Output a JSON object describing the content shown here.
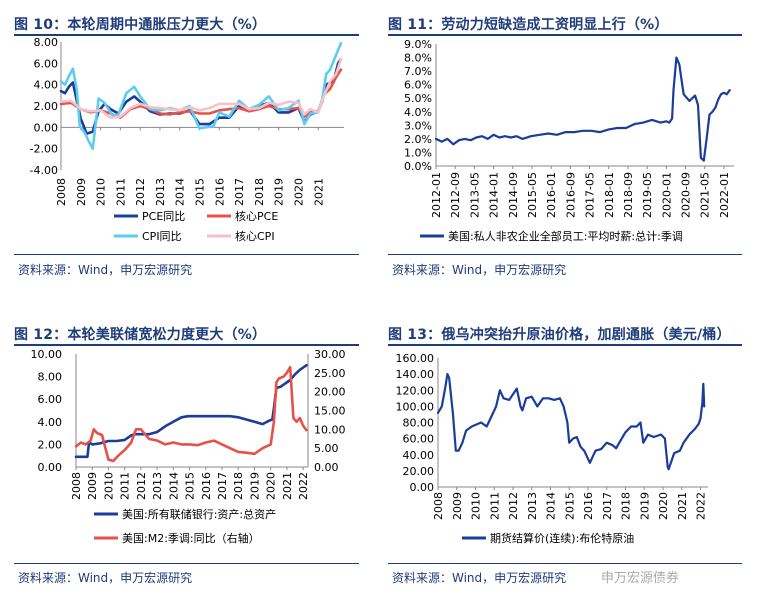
{
  "panels": [
    {
      "title": "图 10：本轮周期中通胀压力更大（%）",
      "source": "资料来源：Wind，申万宏源研究"
    },
    {
      "title": "图 11：劳动力短缺造成工资明显上行（%）",
      "source": "资料来源：Wind，申万宏源研究"
    },
    {
      "title": "图 12：本轮美联储宽松力度更大（%）",
      "source": "资料来源：Wind，申万宏源研究"
    },
    {
      "title": "图 13：俄乌冲突抬升原油价格，加剧通胀（美元/桶）",
      "source": "资料来源：Wind，申万宏源研究"
    }
  ],
  "watermark": "申万宏源债券",
  "chart_data": [
    {
      "type": "line",
      "title": "图 10：本轮周期中通胀压力更大（%）",
      "ylim": [
        -4,
        8
      ],
      "yticks": [
        "-4.00",
        "-2.00",
        "0.00",
        "2.00",
        "4.00",
        "6.00",
        "8.00"
      ],
      "xticks": [
        "2008",
        "2009",
        "2010",
        "2011",
        "2012",
        "2013",
        "2014",
        "2015",
        "2016",
        "2017",
        "2018",
        "2019",
        "2020",
        "2021"
      ],
      "legend_placement": "bottom",
      "series": [
        {
          "name": "PCE同比",
          "color": "#1a3d99",
          "x": [
            2008.0,
            2008.2,
            2008.4,
            2008.6,
            2008.8,
            2009.0,
            2009.3,
            2009.6,
            2009.9,
            2010.2,
            2010.5,
            2010.9,
            2011.3,
            2011.7,
            2012.0,
            2012.5,
            2013.0,
            2013.5,
            2014.0,
            2014.5,
            2015.0,
            2015.5,
            2016.0,
            2016.5,
            2017.0,
            2017.5,
            2018.0,
            2018.5,
            2019.0,
            2019.5,
            2020.0,
            2020.3,
            2020.6,
            2021.0,
            2021.2,
            2021.4,
            2021.6,
            2021.8,
            2022.0,
            2022.15
          ],
          "y": [
            3.4,
            3.2,
            3.8,
            4.2,
            2.5,
            0.8,
            -0.6,
            -0.4,
            1.5,
            2.2,
            1.7,
            1.3,
            2.4,
            2.9,
            2.4,
            1.5,
            1.2,
            1.3,
            1.3,
            1.6,
            0.3,
            0.3,
            0.9,
            0.9,
            2.0,
            1.6,
            2.0,
            2.3,
            1.4,
            1.4,
            1.8,
            0.5,
            1.2,
            1.5,
            2.4,
            4.0,
            4.2,
            4.5,
            6.0,
            6.4
          ]
        },
        {
          "name": "核心PCE",
          "color": "#e8514a",
          "x": [
            2008.0,
            2008.5,
            2009.0,
            2009.5,
            2010.0,
            2010.5,
            2011.0,
            2011.5,
            2012.0,
            2012.5,
            2013.0,
            2013.5,
            2014.0,
            2014.5,
            2015.0,
            2015.5,
            2016.0,
            2016.5,
            2017.0,
            2017.5,
            2018.0,
            2018.5,
            2019.0,
            2019.5,
            2020.0,
            2020.3,
            2020.6,
            2021.0,
            2021.3,
            2021.6,
            2021.9,
            2022.15
          ],
          "y": [
            2.2,
            2.3,
            1.7,
            1.4,
            1.6,
            1.3,
            0.9,
            1.7,
            2.0,
            1.7,
            1.3,
            1.2,
            1.4,
            1.5,
            1.3,
            1.3,
            1.6,
            1.7,
            1.8,
            1.5,
            1.7,
            2.0,
            1.7,
            1.7,
            1.8,
            1.0,
            1.4,
            1.5,
            3.1,
            3.6,
            4.7,
            5.4
          ]
        },
        {
          "name": "CPI同比",
          "color": "#5ccdf2",
          "x": [
            2008.0,
            2008.2,
            2008.4,
            2008.6,
            2008.8,
            2008.95,
            2009.2,
            2009.4,
            2009.6,
            2009.9,
            2010.2,
            2010.6,
            2010.9,
            2011.3,
            2011.7,
            2012.0,
            2012.5,
            2013.0,
            2013.5,
            2014.0,
            2014.5,
            2015.0,
            2015.3,
            2015.7,
            2016.0,
            2016.5,
            2017.0,
            2017.5,
            2018.0,
            2018.5,
            2019.0,
            2019.5,
            2020.0,
            2020.3,
            2020.6,
            2021.0,
            2021.2,
            2021.4,
            2021.6,
            2021.9,
            2022.15
          ],
          "y": [
            4.3,
            4.0,
            4.8,
            5.5,
            3.5,
            0.1,
            -0.5,
            -1.3,
            -2.0,
            2.7,
            2.3,
            1.1,
            1.2,
            3.2,
            3.8,
            2.9,
            1.7,
            1.6,
            1.8,
            1.6,
            2.0,
            -0.1,
            0.0,
            0.1,
            1.4,
            1.0,
            2.5,
            1.7,
            2.1,
            2.9,
            1.6,
            1.8,
            2.5,
            0.3,
            1.3,
            1.4,
            2.6,
            5.0,
            5.4,
            6.8,
            7.9
          ]
        },
        {
          "name": "核心CPI",
          "color": "#f6c2c9",
          "x": [
            2008.0,
            2008.5,
            2009.0,
            2009.5,
            2010.0,
            2010.5,
            2011.0,
            2011.5,
            2012.0,
            2012.5,
            2013.0,
            2013.5,
            2014.0,
            2014.5,
            2015.0,
            2015.5,
            2016.0,
            2016.5,
            2017.0,
            2017.5,
            2018.0,
            2018.5,
            2019.0,
            2019.5,
            2020.0,
            2020.3,
            2020.6,
            2021.0,
            2021.3,
            2021.6,
            2021.9,
            2022.15
          ],
          "y": [
            2.4,
            2.5,
            1.7,
            1.5,
            1.6,
            0.9,
            1.0,
            1.8,
            2.2,
            1.9,
            1.8,
            1.7,
            1.6,
            1.9,
            1.6,
            1.8,
            2.2,
            2.2,
            2.2,
            1.7,
            1.8,
            2.3,
            2.1,
            2.4,
            2.3,
            1.2,
            1.7,
            1.4,
            3.0,
            4.3,
            5.0,
            6.4
          ]
        }
      ]
    },
    {
      "type": "line",
      "title": "图 11：劳动力短缺造成工资明显上行（%）",
      "ylim": [
        0,
        9
      ],
      "yticks": [
        "0.0%",
        "1.0%",
        "2.0%",
        "3.0%",
        "4.0%",
        "5.0%",
        "6.0%",
        "7.0%",
        "8.0%",
        "9.0%"
      ],
      "xticks": [
        "2012-01",
        "2012-09",
        "2013-05",
        "2014-01",
        "2014-09",
        "2015-05",
        "2016-01",
        "2016-09",
        "2017-05",
        "2018-01",
        "2018-09",
        "2019-05",
        "2020-01",
        "2020-09",
        "2021-05",
        "2022-01"
      ],
      "legend_placement": "bottom",
      "series": [
        {
          "name": "美国:私人非农企业全部员工:平均时薪:总计:季调",
          "color": "#1a3d99",
          "x": [
            2012.0,
            2012.2,
            2012.4,
            2012.6,
            2012.8,
            2013.0,
            2013.2,
            2013.4,
            2013.6,
            2013.8,
            2014.0,
            2014.2,
            2014.4,
            2014.6,
            2014.8,
            2015.0,
            2015.3,
            2015.6,
            2015.9,
            2016.2,
            2016.5,
            2016.8,
            2017.1,
            2017.4,
            2017.7,
            2018.0,
            2018.3,
            2018.6,
            2018.9,
            2019.2,
            2019.5,
            2019.8,
            2020.0,
            2020.1,
            2020.2,
            2020.25,
            2020.35,
            2020.45,
            2020.6,
            2020.8,
            2021.0,
            2021.1,
            2021.2,
            2021.3,
            2021.4,
            2021.5,
            2021.6,
            2021.7,
            2021.8,
            2021.9,
            2022.0,
            2022.1,
            2022.2
          ],
          "y": [
            2.0,
            1.8,
            2.0,
            1.6,
            1.9,
            2.0,
            1.9,
            2.1,
            2.2,
            2.0,
            2.3,
            2.1,
            2.2,
            2.1,
            2.2,
            2.0,
            2.2,
            2.3,
            2.4,
            2.3,
            2.5,
            2.5,
            2.6,
            2.6,
            2.5,
            2.7,
            2.8,
            2.8,
            3.1,
            3.2,
            3.4,
            3.2,
            3.3,
            3.2,
            3.5,
            5.6,
            8.0,
            7.5,
            5.3,
            4.8,
            5.2,
            4.5,
            0.6,
            0.4,
            2.0,
            3.8,
            4.0,
            4.3,
            4.9,
            5.3,
            5.4,
            5.3,
            5.6
          ]
        }
      ]
    },
    {
      "type": "line",
      "title": "图 12：本轮美联储宽松力度更大（%）",
      "ylim": [
        0,
        10
      ],
      "y2lim": [
        0,
        30
      ],
      "yticks": [
        "0.00",
        "2.00",
        "4.00",
        "6.00",
        "8.00",
        "10.00"
      ],
      "y2ticks": [
        "0.00",
        "5.00",
        "10.00",
        "15.00",
        "20.00",
        "25.00",
        "30.00"
      ],
      "xticks": [
        "2008",
        "2009",
        "2010",
        "2011",
        "2012",
        "2013",
        "2014",
        "2015",
        "2016",
        "2017",
        "2018",
        "2019",
        "2020",
        "2021",
        "2022"
      ],
      "legend_placement": "bottom",
      "series": [
        {
          "name": "美国:所有联储银行:资产:总资产",
          "color": "#1a3d99",
          "axis": "left",
          "x": [
            2008.0,
            2008.7,
            2008.75,
            2008.8,
            2009.0,
            2009.5,
            2010.0,
            2010.5,
            2011.0,
            2011.4,
            2011.6,
            2012.0,
            2012.5,
            2013.0,
            2013.5,
            2014.0,
            2014.5,
            2014.9,
            2015.5,
            2016.0,
            2016.5,
            2017.0,
            2017.5,
            2018.0,
            2018.5,
            2019.0,
            2019.5,
            2019.9,
            2020.1,
            2020.2,
            2020.35,
            2020.6,
            2020.9,
            2021.2,
            2021.5,
            2021.8,
            2022.2
          ],
          "y": [
            0.9,
            0.9,
            1.5,
            2.2,
            2.0,
            2.1,
            2.3,
            2.3,
            2.4,
            2.8,
            2.9,
            2.9,
            2.9,
            3.1,
            3.6,
            4.0,
            4.4,
            4.5,
            4.5,
            4.5,
            4.5,
            4.5,
            4.5,
            4.4,
            4.2,
            4.0,
            3.8,
            4.1,
            4.2,
            5.2,
            7.0,
            7.1,
            7.4,
            7.7,
            8.2,
            8.6,
            9.0
          ]
        },
        {
          "name": "美国:M2:季调:同比（右轴）",
          "color": "#e8514a",
          "axis": "right",
          "x": [
            2008.0,
            2008.3,
            2008.6,
            2008.9,
            2009.1,
            2009.3,
            2009.6,
            2010.0,
            2010.3,
            2010.6,
            2011.0,
            2011.4,
            2011.7,
            2012.0,
            2012.5,
            2013.0,
            2013.5,
            2014.0,
            2014.5,
            2015.0,
            2015.5,
            2016.0,
            2016.5,
            2017.0,
            2017.5,
            2018.0,
            2018.5,
            2019.0,
            2019.5,
            2020.0,
            2020.2,
            2020.35,
            2020.5,
            2020.8,
            2021.0,
            2021.2,
            2021.4,
            2021.6,
            2021.8,
            2022.0,
            2022.2
          ],
          "y": [
            5.5,
            6.5,
            6.0,
            7.0,
            10.0,
            9.0,
            8.5,
            2.0,
            1.6,
            3.0,
            4.5,
            6.5,
            10.0,
            10.0,
            7.5,
            7.0,
            6.0,
            6.5,
            6.0,
            6.0,
            5.8,
            6.5,
            7.0,
            6.0,
            5.0,
            4.0,
            3.8,
            3.5,
            5.0,
            6.0,
            12.0,
            22.5,
            23.5,
            24.0,
            25.0,
            26.5,
            13.0,
            12.0,
            13.0,
            11.0,
            9.8
          ]
        }
      ]
    },
    {
      "type": "line",
      "title": "图 13：俄乌冲突抬升原油价格，加剧通胀（美元/桶）",
      "ylim": [
        0,
        160
      ],
      "yticks": [
        "0.00",
        "20.00",
        "40.00",
        "60.00",
        "80.00",
        "100.00",
        "120.00",
        "140.00",
        "160.00"
      ],
      "xticks": [
        "2008",
        "2009",
        "2010",
        "2011",
        "2012",
        "2013",
        "2014",
        "2015",
        "2016",
        "2017",
        "2018",
        "2019",
        "2020",
        "2021",
        "2022"
      ],
      "legend_placement": "bottom",
      "series": [
        {
          "name": "期货结算价(连续):布伦特原油",
          "color": "#1a3d99",
          "x": [
            2008.0,
            2008.2,
            2008.4,
            2008.5,
            2008.6,
            2008.8,
            2008.95,
            2009.1,
            2009.3,
            2009.5,
            2009.8,
            2010.0,
            2010.3,
            2010.6,
            2010.9,
            2011.1,
            2011.3,
            2011.5,
            2011.8,
            2012.0,
            2012.2,
            2012.4,
            2012.5,
            2012.7,
            2013.0,
            2013.3,
            2013.6,
            2013.9,
            2014.2,
            2014.5,
            2014.7,
            2014.9,
            2015.0,
            2015.2,
            2015.4,
            2015.6,
            2015.8,
            2016.0,
            2016.1,
            2016.4,
            2016.7,
            2017.0,
            2017.3,
            2017.5,
            2017.8,
            2018.0,
            2018.3,
            2018.6,
            2018.8,
            2018.95,
            2019.2,
            2019.5,
            2019.9,
            2020.1,
            2020.25,
            2020.3,
            2020.6,
            2020.9,
            2021.1,
            2021.4,
            2021.7,
            2021.9,
            2022.0,
            2022.1,
            2022.15,
            2022.2
          ],
          "y": [
            92,
            100,
            125,
            140,
            135,
            90,
            45,
            45,
            55,
            70,
            75,
            77,
            80,
            75,
            90,
            100,
            120,
            110,
            108,
            115,
            122,
            100,
            95,
            110,
            112,
            100,
            110,
            110,
            108,
            110,
            100,
            80,
            55,
            60,
            62,
            50,
            45,
            35,
            30,
            45,
            47,
            55,
            52,
            48,
            60,
            68,
            75,
            75,
            80,
            55,
            65,
            62,
            65,
            60,
            25,
            22,
            42,
            45,
            55,
            65,
            72,
            78,
            85,
            105,
            128,
            100
          ]
        }
      ]
    }
  ]
}
